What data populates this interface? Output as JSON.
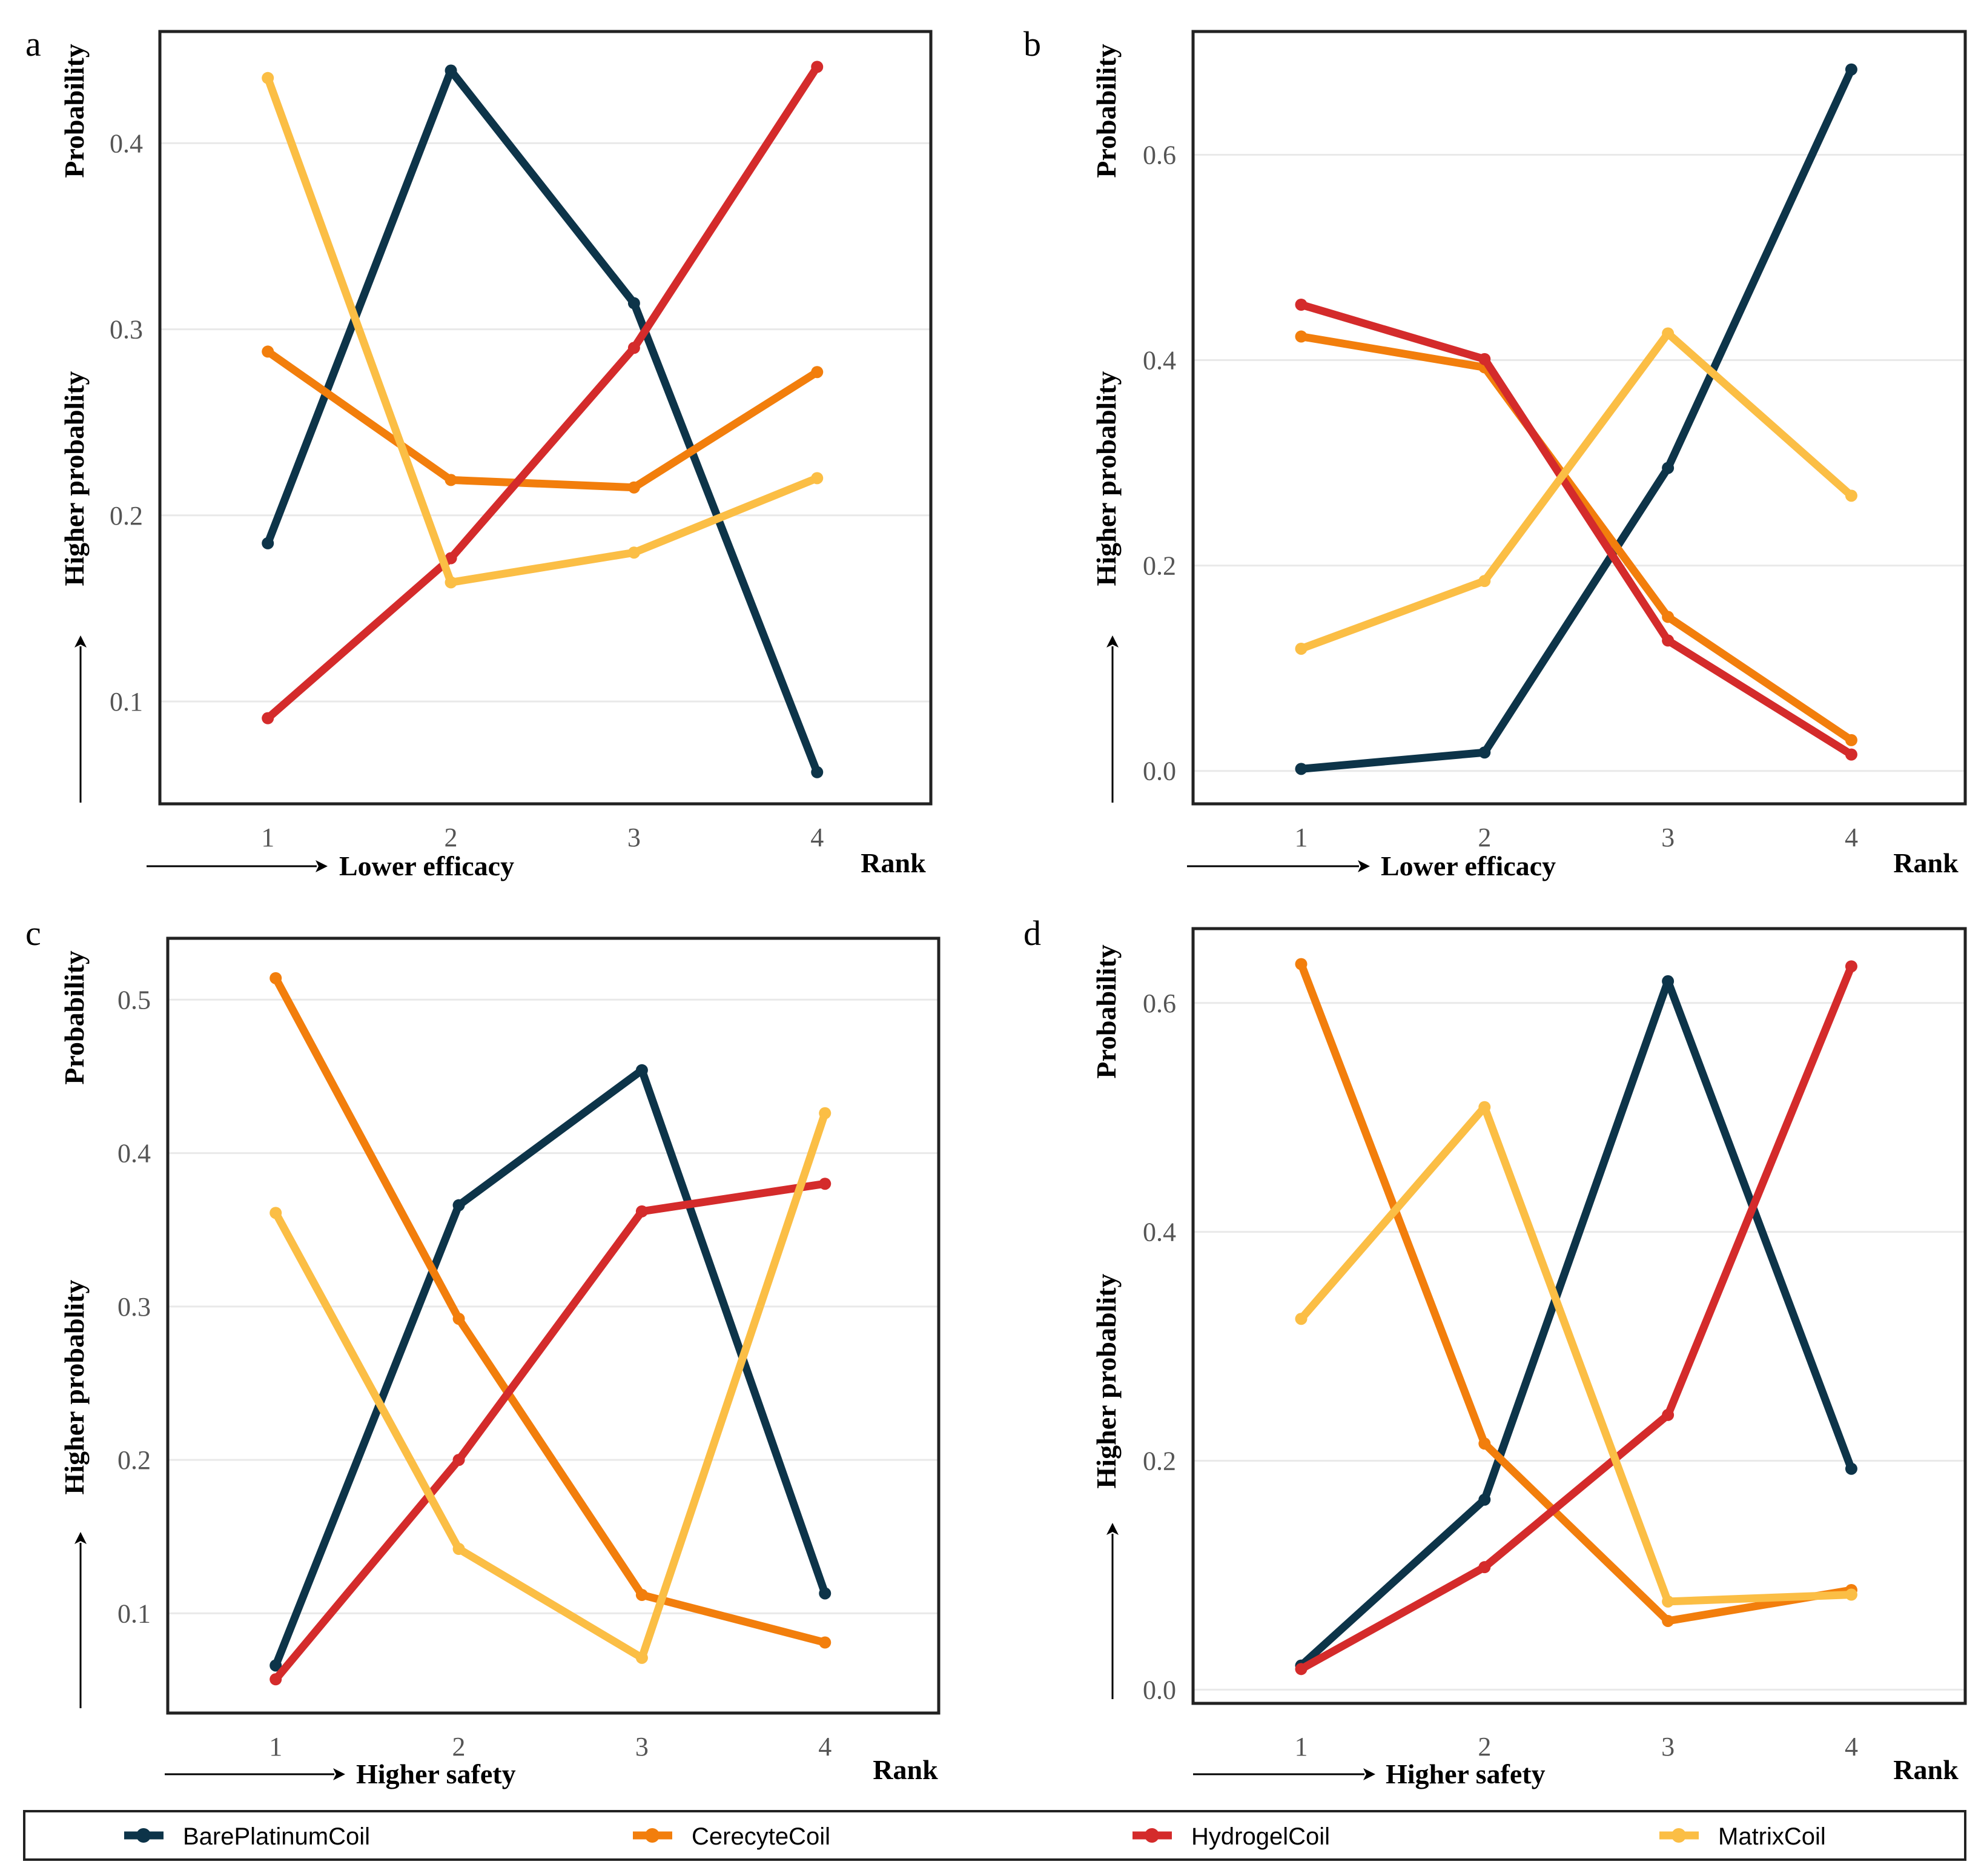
{
  "colors": {
    "BarePlatinumCoil": "#0d3449",
    "CerecyteCoil": "#f27e0c",
    "HydrogelCoil": "#d42b2b",
    "MatrixCoil": "#fbbe45",
    "grid": "#e9e9e9",
    "frame": "#222222",
    "text": "#000000",
    "tick": "#555555"
  },
  "legend": {
    "entries": [
      "BarePlatinumCoil",
      "CerecyteCoil",
      "HydrogelCoil",
      "MatrixCoil"
    ]
  },
  "chart_data": [
    {
      "panel": "a",
      "type": "line",
      "x": [
        1,
        2,
        3,
        4
      ],
      "xlabel": "Rank",
      "ylabel": "Probability",
      "ylabel_secondary": "Higher  probablity",
      "x_direction_label": "Lower efficacy",
      "ylim": [
        0.045,
        0.46
      ],
      "yticks": [
        0.1,
        0.2,
        0.3,
        0.4
      ],
      "ytick_labels": [
        "0.1",
        "0.2",
        "0.3",
        "0.4"
      ],
      "series": [
        {
          "name": "BarePlatinumCoil",
          "values": [
            0.185,
            0.439,
            0.314,
            0.062
          ]
        },
        {
          "name": "CerecyteCoil",
          "values": [
            0.288,
            0.219,
            0.215,
            0.277
          ]
        },
        {
          "name": "HydrogelCoil",
          "values": [
            0.091,
            0.177,
            0.29,
            0.441
          ]
        },
        {
          "name": "MatrixCoil",
          "values": [
            0.435,
            0.164,
            0.18,
            0.22
          ]
        }
      ]
    },
    {
      "panel": "b",
      "type": "line",
      "x": [
        1,
        2,
        3,
        4
      ],
      "xlabel": "Rank",
      "ylabel": "Probability",
      "ylabel_secondary": "Higher  probablity",
      "x_direction_label": "Lower efficacy",
      "ylim": [
        -0.032,
        0.72
      ],
      "yticks": [
        0.0,
        0.2,
        0.4,
        0.6
      ],
      "ytick_labels": [
        "0.0",
        "0.2",
        "0.4",
        "0.6"
      ],
      "series": [
        {
          "name": "BarePlatinumCoil",
          "values": [
            0.002,
            0.018,
            0.295,
            0.683
          ]
        },
        {
          "name": "CerecyteCoil",
          "values": [
            0.423,
            0.393,
            0.15,
            0.03
          ]
        },
        {
          "name": "HydrogelCoil",
          "values": [
            0.454,
            0.401,
            0.127,
            0.016
          ]
        },
        {
          "name": "MatrixCoil",
          "values": [
            0.119,
            0.185,
            0.426,
            0.268
          ]
        }
      ]
    },
    {
      "panel": "c",
      "type": "line",
      "x": [
        1,
        2,
        3,
        4
      ],
      "xlabel": "Rank",
      "ylabel": "Probability",
      "ylabel_secondary": "Higher  probablity",
      "x_direction_label": "Higher safety",
      "ylim": [
        0.035,
        0.54
      ],
      "yticks": [
        0.1,
        0.2,
        0.3,
        0.4,
        0.5
      ],
      "ytick_labels": [
        "0.1",
        "0.2",
        "0.3",
        "0.4",
        "0.5"
      ],
      "series": [
        {
          "name": "BarePlatinumCoil",
          "values": [
            0.066,
            0.366,
            0.454,
            0.113
          ]
        },
        {
          "name": "CerecyteCoil",
          "values": [
            0.514,
            0.292,
            0.112,
            0.081
          ]
        },
        {
          "name": "HydrogelCoil",
          "values": [
            0.057,
            0.2,
            0.362,
            0.38
          ]
        },
        {
          "name": "MatrixCoil",
          "values": [
            0.361,
            0.142,
            0.071,
            0.426
          ]
        }
      ]
    },
    {
      "panel": "d",
      "type": "line",
      "x": [
        1,
        2,
        3,
        4
      ],
      "xlabel": "Rank",
      "ylabel": "Probability",
      "ylabel_secondary": "Higher  probablity",
      "x_direction_label": "Higher safety",
      "ylim": [
        -0.012,
        0.665
      ],
      "yticks": [
        0.0,
        0.2,
        0.4,
        0.6
      ],
      "ytick_labels": [
        "0.0",
        "0.2",
        "0.4",
        "0.6"
      ],
      "series": [
        {
          "name": "BarePlatinumCoil",
          "values": [
            0.021,
            0.166,
            0.619,
            0.193
          ]
        },
        {
          "name": "CerecyteCoil",
          "values": [
            0.634,
            0.215,
            0.06,
            0.087
          ]
        },
        {
          "name": "HydrogelCoil",
          "values": [
            0.018,
            0.107,
            0.24,
            0.632
          ]
        },
        {
          "name": "MatrixCoil",
          "values": [
            0.324,
            0.509,
            0.077,
            0.083
          ]
        }
      ]
    }
  ]
}
